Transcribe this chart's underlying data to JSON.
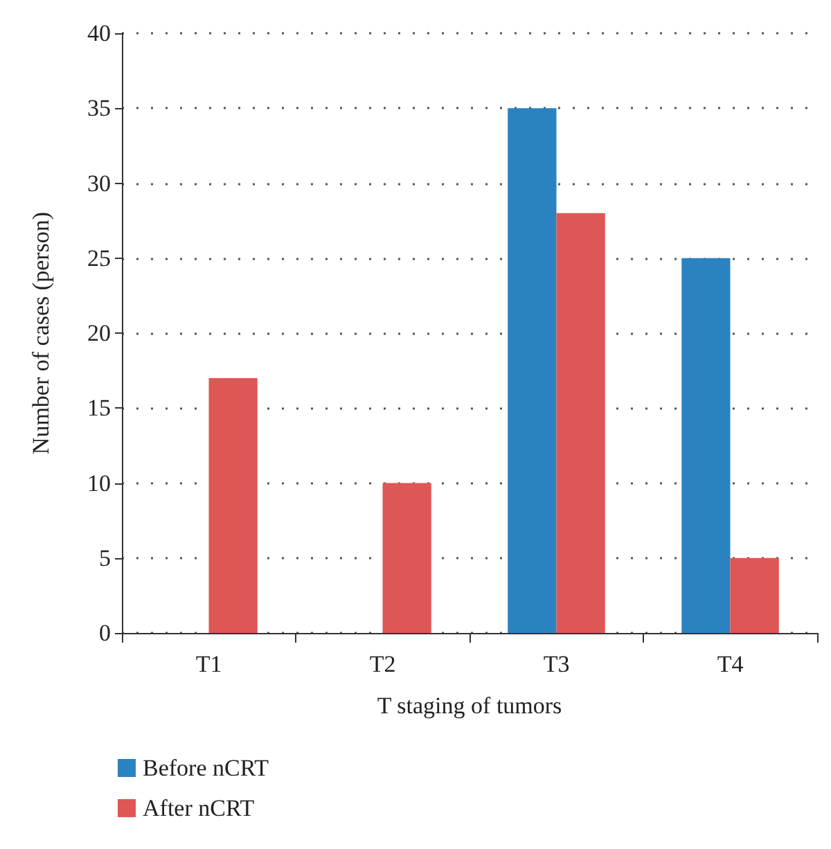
{
  "chart_data": {
    "type": "bar",
    "xlabel": "T staging of tumors",
    "ylabel": "Number of cases (person)",
    "categories": [
      "T1",
      "T2",
      "T3",
      "T4"
    ],
    "series": [
      {
        "name": "Before nCRT",
        "color": "#2b82c0",
        "values": [
          0,
          0,
          35,
          25
        ]
      },
      {
        "name": "After nCRT",
        "color": "#df5755",
        "values": [
          17,
          10,
          28,
          5
        ]
      }
    ],
    "ylim": [
      0,
      40
    ],
    "yticks": [
      0,
      5,
      10,
      15,
      20,
      25,
      30,
      35,
      40
    ],
    "grid": "y",
    "legend": "bottom left"
  }
}
